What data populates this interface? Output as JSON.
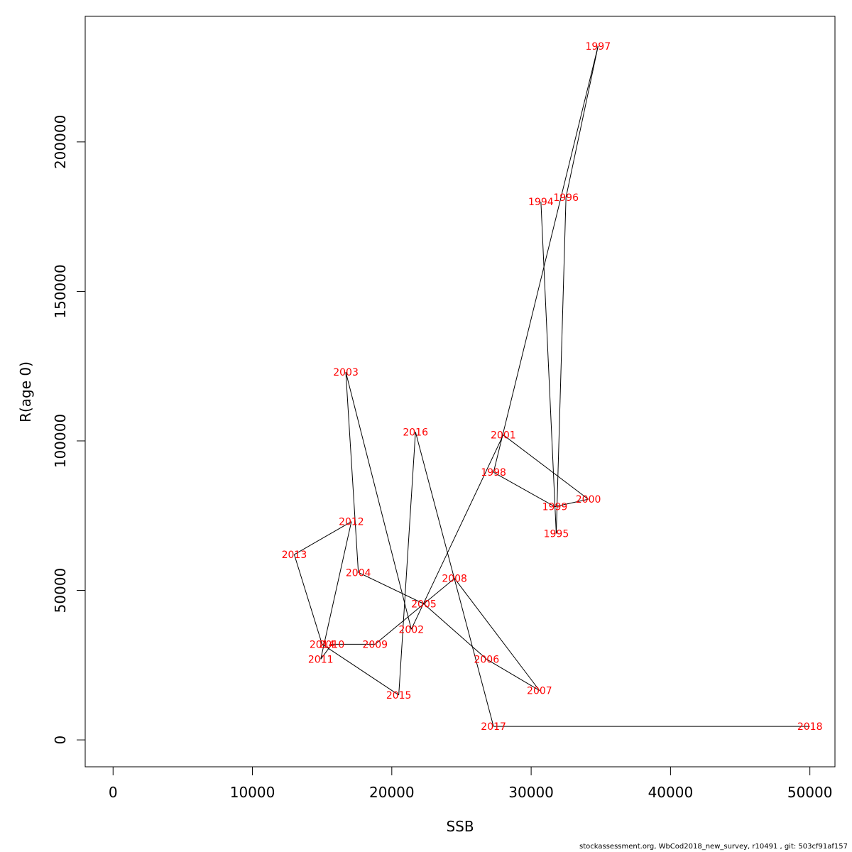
{
  "chart_data": {
    "type": "line",
    "xlabel": "SSB",
    "ylabel": "R(age 0)",
    "xlim": [
      -2000,
      51800
    ],
    "ylim": [
      -9000,
      242000
    ],
    "xticks": [
      0,
      10000,
      20000,
      30000,
      40000,
      50000
    ],
    "yticks": [
      0,
      50000,
      100000,
      150000,
      200000
    ],
    "grid": false,
    "point_label_color": "#ff0000",
    "line_color": "#000000",
    "points": [
      {
        "label": "1994",
        "x": 30700,
        "y": 180000
      },
      {
        "label": "1995",
        "x": 31800,
        "y": 69000
      },
      {
        "label": "1996",
        "x": 32500,
        "y": 181500
      },
      {
        "label": "1997",
        "x": 34800,
        "y": 232000
      },
      {
        "label": "1998",
        "x": 27300,
        "y": 89500
      },
      {
        "label": "1999",
        "x": 31700,
        "y": 78000
      },
      {
        "label": "2000",
        "x": 34100,
        "y": 80500
      },
      {
        "label": "2001",
        "x": 28000,
        "y": 102000
      },
      {
        "label": "2002",
        "x": 21400,
        "y": 37000
      },
      {
        "label": "2003",
        "x": 16700,
        "y": 123000
      },
      {
        "label": "2004",
        "x": 17600,
        "y": 56000
      },
      {
        "label": "2005",
        "x": 22300,
        "y": 45500
      },
      {
        "label": "2006",
        "x": 26800,
        "y": 27000
      },
      {
        "label": "2007",
        "x": 30600,
        "y": 16500
      },
      {
        "label": "2008",
        "x": 24500,
        "y": 54000
      },
      {
        "label": "2009",
        "x": 18800,
        "y": 32000
      },
      {
        "label": "2010",
        "x": 15700,
        "y": 32000
      },
      {
        "label": "2011",
        "x": 14900,
        "y": 27000
      },
      {
        "label": "2012",
        "x": 17100,
        "y": 73000
      },
      {
        "label": "2013",
        "x": 13000,
        "y": 62000
      },
      {
        "label": "2014",
        "x": 15000,
        "y": 32000
      },
      {
        "label": "2015",
        "x": 20500,
        "y": 15000
      },
      {
        "label": "2016",
        "x": 21700,
        "y": 103000
      },
      {
        "label": "2017",
        "x": 27300,
        "y": 4500
      },
      {
        "label": "2018",
        "x": 50000,
        "y": 4500
      }
    ]
  },
  "footer": "stockassessment.org, WbCod2018_new_survey, r10491 , git: 503cf91af157"
}
